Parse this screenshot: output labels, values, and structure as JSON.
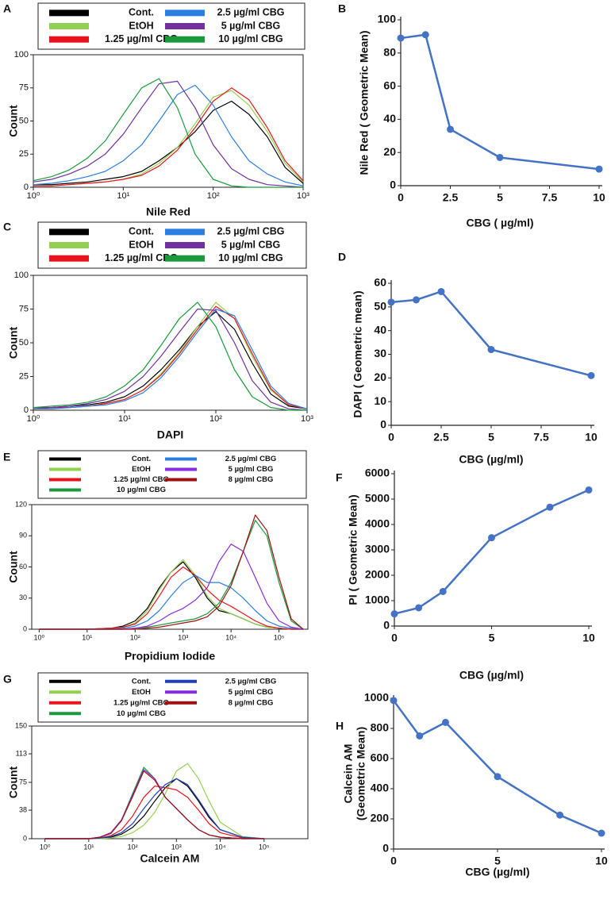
{
  "chart_data": [
    {
      "type": "line",
      "label": "A",
      "xscale": "log",
      "xlabel": "Nile Red",
      "ylabel": "Count",
      "xlim": [
        1,
        1000
      ],
      "ylim": [
        0,
        100
      ],
      "xticks": [
        {
          "value": 1,
          "label": "10⁰"
        },
        {
          "value": 10,
          "label": "10¹"
        },
        {
          "value": 100,
          "label": "10²"
        },
        {
          "value": 1000,
          "label": "10³"
        }
      ],
      "yticks": [
        0,
        25,
        50,
        75,
        100
      ],
      "x": [
        1,
        1.6,
        2.5,
        4,
        6.3,
        10,
        16,
        25,
        40,
        63,
        100,
        160,
        250,
        400,
        630,
        1000
      ],
      "series": [
        {
          "name": "Cont.",
          "color": "#000000",
          "values": [
            2,
            2,
            3,
            4,
            6,
            8,
            12,
            20,
            30,
            42,
            58,
            65,
            55,
            38,
            15,
            3
          ]
        },
        {
          "name": "EtOH",
          "color": "#92d050",
          "values": [
            1,
            1,
            2,
            3,
            4,
            6,
            10,
            18,
            30,
            48,
            68,
            73,
            62,
            42,
            18,
            4
          ]
        },
        {
          "name": "1.25 µg/ml CBG",
          "color": "#e8141b",
          "values": [
            1,
            1,
            2,
            3,
            4,
            6,
            9,
            16,
            28,
            45,
            65,
            75,
            66,
            45,
            20,
            5
          ]
        },
        {
          "name": "2.5 µg/ml CBG",
          "color": "#2a7de1",
          "values": [
            2,
            3,
            5,
            8,
            12,
            20,
            32,
            50,
            70,
            77,
            62,
            38,
            20,
            10,
            4,
            1
          ]
        },
        {
          "name": "5 µg/ml CBG",
          "color": "#7030a0",
          "values": [
            4,
            6,
            10,
            16,
            25,
            40,
            60,
            78,
            80,
            60,
            32,
            14,
            6,
            2,
            1,
            0
          ]
        },
        {
          "name": "10 µg/ml CBG",
          "color": "#1a9a3c",
          "values": [
            5,
            8,
            13,
            22,
            35,
            55,
            75,
            82,
            60,
            25,
            6,
            1,
            0,
            0,
            0,
            0
          ]
        }
      ]
    },
    {
      "type": "line",
      "label": "B",
      "markers": true,
      "xlabel": "CBG ( µg/ml)",
      "ylabel": "Nile Red ( Geometric Mean)",
      "xlim": [
        0,
        10
      ],
      "ylim": [
        0,
        100
      ],
      "xticks": [
        0,
        2.5,
        5,
        7.5,
        10
      ],
      "yticks": [
        0,
        20,
        40,
        60,
        80,
        100
      ],
      "x": [
        0,
        1.25,
        2.5,
        5,
        10
      ],
      "series": [
        {
          "color": "#4472c4",
          "values": [
            89,
            91,
            34,
            17,
            10
          ]
        }
      ]
    },
    {
      "type": "line",
      "label": "C",
      "xscale": "log",
      "xlabel": "DAPI",
      "ylabel": "Count",
      "xlim": [
        1,
        1000
      ],
      "ylim": [
        0,
        100
      ],
      "xticks": [
        {
          "value": 1,
          "label": "10⁰"
        },
        {
          "value": 10,
          "label": "10¹"
        },
        {
          "value": 100,
          "label": "10²"
        },
        {
          "value": 1000,
          "label": "10³"
        }
      ],
      "yticks": [
        0,
        25,
        50,
        75,
        100
      ],
      "x": [
        1,
        1.6,
        2.5,
        4,
        6.3,
        10,
        16,
        25,
        40,
        63,
        100,
        160,
        250,
        400,
        630,
        1000
      ],
      "series": [
        {
          "name": "Cont.",
          "color": "#000000",
          "values": [
            1,
            2,
            3,
            4,
            6,
            10,
            18,
            30,
            45,
            62,
            73,
            60,
            35,
            12,
            3,
            1
          ]
        },
        {
          "name": "EtOH",
          "color": "#92d050",
          "values": [
            1,
            2,
            2,
            3,
            5,
            8,
            15,
            27,
            43,
            62,
            80,
            68,
            40,
            15,
            4,
            1
          ]
        },
        {
          "name": "1.25 µg/ml CBG",
          "color": "#e8141b",
          "values": [
            1,
            2,
            2,
            3,
            5,
            8,
            15,
            26,
            42,
            60,
            77,
            68,
            42,
            16,
            4,
            1
          ]
        },
        {
          "name": "2.5 µg/ml CBG",
          "color": "#2a7de1",
          "values": [
            1,
            1,
            2,
            3,
            4,
            7,
            13,
            24,
            40,
            58,
            75,
            70,
            45,
            18,
            5,
            1
          ]
        },
        {
          "name": "5 µg/ml CBG",
          "color": "#7030a0",
          "values": [
            2,
            2,
            3,
            5,
            8,
            14,
            25,
            40,
            58,
            75,
            74,
            50,
            22,
            6,
            1,
            0
          ]
        },
        {
          "name": "10 µg/ml CBG",
          "color": "#1a9a3c",
          "values": [
            2,
            3,
            4,
            6,
            10,
            18,
            30,
            48,
            68,
            80,
            62,
            30,
            10,
            2,
            0,
            0
          ]
        }
      ]
    },
    {
      "type": "line",
      "label": "D",
      "markers": true,
      "xlabel": "CBG (µg/ml)",
      "ylabel": "DAPI ( Geometric mean)",
      "xlim": [
        0,
        10
      ],
      "ylim": [
        0,
        60
      ],
      "xticks": [
        0,
        2.5,
        5,
        7.5,
        10
      ],
      "yticks": [
        0,
        10,
        20,
        30,
        40,
        50,
        60
      ],
      "x": [
        0,
        1.25,
        2.5,
        5,
        10
      ],
      "series": [
        {
          "color": "#4472c4",
          "values": [
            52,
            53,
            56.5,
            32,
            21
          ]
        }
      ]
    },
    {
      "type": "line",
      "label": "E",
      "xscale": "log",
      "xlabel": "Propidium Iodide",
      "ylabel": "Count",
      "xlim": [
        0.7,
        400000
      ],
      "ylim": [
        0,
        120
      ],
      "xticks": [
        {
          "value": 1,
          "label": "10⁰"
        },
        {
          "value": 10,
          "label": "10¹"
        },
        {
          "value": 100,
          "label": "10²"
        },
        {
          "value": 1000,
          "label": "10³"
        },
        {
          "value": 10000,
          "label": "10⁴"
        },
        {
          "value": 100000,
          "label": "10⁵"
        }
      ],
      "yticks": [
        0,
        30,
        60,
        90,
        120
      ],
      "x": [
        1,
        3.2,
        10,
        32,
        56,
        100,
        180,
        320,
        560,
        1000,
        1800,
        3200,
        5600,
        10000,
        18000,
        32000,
        56000,
        100000,
        180000,
        320000
      ],
      "series": [
        {
          "name": "Cont.",
          "color": "#000000",
          "values": [
            0,
            0,
            0,
            1,
            3,
            8,
            20,
            40,
            55,
            65,
            50,
            30,
            18,
            15,
            10,
            5,
            2,
            1,
            0,
            0
          ]
        },
        {
          "name": "EtOH",
          "color": "#92d050",
          "values": [
            0,
            0,
            0,
            1,
            2,
            6,
            18,
            38,
            55,
            67,
            52,
            32,
            20,
            15,
            10,
            5,
            2,
            1,
            0,
            0
          ]
        },
        {
          "name": "1.25 µg/ml CBG",
          "color": "#e8141b",
          "values": [
            0,
            0,
            0,
            1,
            2,
            5,
            15,
            32,
            50,
            60,
            52,
            38,
            28,
            22,
            15,
            8,
            3,
            1,
            0,
            0
          ]
        },
        {
          "name": "10 µg/ml CBG",
          "color": "#1a9a3c",
          "values": [
            0,
            0,
            0,
            0,
            0,
            1,
            2,
            4,
            6,
            8,
            10,
            15,
            25,
            45,
            75,
            105,
            90,
            45,
            8,
            0
          ]
        },
        {
          "name": "2.5 µg/ml CBG",
          "color": "#2a7de1",
          "values": [
            0,
            0,
            0,
            0,
            1,
            3,
            8,
            18,
            32,
            45,
            52,
            45,
            45,
            40,
            30,
            18,
            8,
            3,
            1,
            0
          ]
        },
        {
          "name": "5 µg/ml CBG",
          "color": "#8a2be2",
          "values": [
            0,
            0,
            0,
            0,
            0,
            1,
            3,
            8,
            15,
            20,
            28,
            40,
            65,
            82,
            75,
            50,
            25,
            8,
            2,
            0
          ]
        },
        {
          "name": "8 µg/ml CBG",
          "color": "#a01010",
          "values": [
            0,
            0,
            0,
            0,
            0,
            0,
            1,
            2,
            4,
            6,
            8,
            12,
            22,
            42,
            75,
            110,
            95,
            50,
            10,
            0
          ]
        }
      ]
    },
    {
      "type": "line",
      "label": "F",
      "markers": true,
      "xlabel": "CBG (µg/ml)",
      "ylabel": "PI ( Geometric Mean)",
      "xlim": [
        0,
        10
      ],
      "ylim": [
        0,
        6000
      ],
      "xticks": [
        0,
        5,
        10
      ],
      "yticks": [
        0,
        1000,
        2000,
        3000,
        4000,
        5000,
        6000
      ],
      "x": [
        0,
        1.25,
        2.5,
        5,
        8,
        10
      ],
      "series": [
        {
          "color": "#4472c4",
          "values": [
            480,
            720,
            1360,
            3480,
            4680,
            5360
          ]
        }
      ]
    },
    {
      "type": "line",
      "label": "G",
      "xscale": "log",
      "xlabel": "Calcein AM",
      "ylabel": "Count",
      "xlim": [
        0.5,
        1000000
      ],
      "ylim": [
        0,
        150
      ],
      "xticks": [
        {
          "value": 1,
          "label": "10⁰"
        },
        {
          "value": 10,
          "label": "10¹"
        },
        {
          "value": 100,
          "label": "10²"
        },
        {
          "value": 1000,
          "label": "10³"
        },
        {
          "value": 10000,
          "label": "10⁴"
        },
        {
          "value": 100000,
          "label": "10⁵"
        }
      ],
      "yticks": [
        0,
        38,
        75,
        113,
        150
      ],
      "x": [
        1,
        3.2,
        10,
        18,
        32,
        56,
        100,
        180,
        320,
        560,
        1000,
        1800,
        3200,
        5600,
        10000,
        32000,
        100000
      ],
      "series": [
        {
          "name": "Cont.",
          "color": "#000000",
          "values": [
            0,
            0,
            0,
            1,
            2,
            6,
            15,
            30,
            50,
            68,
            80,
            70,
            50,
            28,
            12,
            2,
            0
          ]
        },
        {
          "name": "EtOH",
          "color": "#92d050",
          "values": [
            0,
            0,
            0,
            0,
            1,
            3,
            8,
            18,
            35,
            60,
            90,
            100,
            80,
            50,
            22,
            3,
            0
          ]
        },
        {
          "name": "1.25 µg/ml CBG",
          "color": "#e8141b",
          "values": [
            0,
            0,
            0,
            1,
            4,
            12,
            30,
            55,
            70,
            68,
            65,
            55,
            38,
            20,
            8,
            1,
            0
          ]
        },
        {
          "name": "10 µg/ml CBG",
          "color": "#1a9a3c",
          "values": [
            0,
            0,
            0,
            2,
            8,
            25,
            60,
            95,
            80,
            55,
            40,
            25,
            12,
            5,
            2,
            0,
            0
          ]
        },
        {
          "name": "2.5 µg/ml CBG",
          "color": "#1f3fbf",
          "values": [
            0,
            0,
            0,
            1,
            3,
            8,
            20,
            40,
            58,
            72,
            80,
            72,
            52,
            30,
            12,
            2,
            0
          ]
        },
        {
          "name": "5 µg/ml CBG",
          "color": "#8a2be2",
          "values": [
            0,
            0,
            0,
            2,
            8,
            25,
            58,
            92,
            80,
            55,
            40,
            25,
            12,
            5,
            2,
            0,
            0
          ]
        },
        {
          "name": "8 µg/ml CBG",
          "color": "#a01010",
          "values": [
            0,
            0,
            0,
            2,
            7,
            24,
            56,
            90,
            78,
            55,
            40,
            25,
            12,
            5,
            2,
            0,
            0
          ]
        }
      ]
    },
    {
      "type": "line",
      "label": "H",
      "markers": true,
      "xlabel": "CBG (µg/ml)",
      "ylabel": [
        "Calcein AM",
        "(Geometric Mean)"
      ],
      "xlim": [
        0,
        10
      ],
      "ylim": [
        0,
        1000
      ],
      "xticks": [
        0,
        5,
        10
      ],
      "yticks": [
        0,
        200,
        400,
        600,
        800,
        1000
      ],
      "x": [
        0,
        1.25,
        2.5,
        5,
        8,
        10
      ],
      "series": [
        {
          "color": "#4472c4",
          "values": [
            985,
            750,
            840,
            480,
            225,
            105
          ]
        }
      ]
    }
  ]
}
